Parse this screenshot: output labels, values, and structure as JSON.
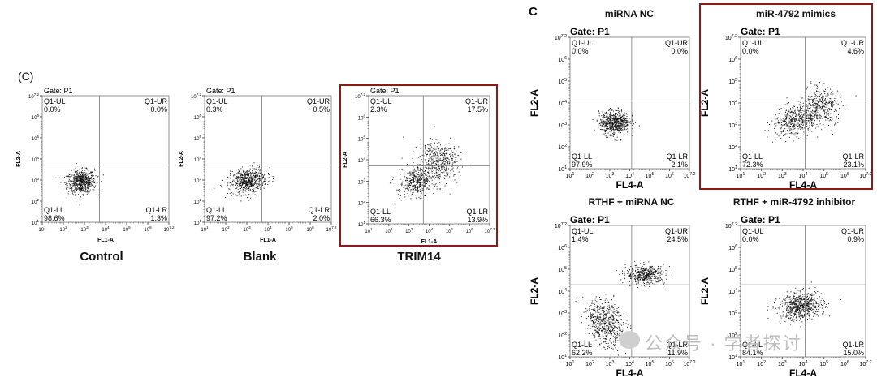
{
  "left_figure": {
    "panel_letter": "(C)",
    "captions": [
      "Control",
      "Blank",
      "TRIM14"
    ]
  },
  "right_figure": {
    "panel_letter": "C",
    "titles": [
      "miRNA NC",
      "miR-4792 mimics",
      "RTHF + miRNA NC",
      "RTHF + miR-4792 inhibitor"
    ]
  },
  "watermark": "公众号 · 学者探讨",
  "colors": {
    "frame": "#8b1a1a",
    "dots": "#111111",
    "watermark": "#bdbdbd"
  },
  "chart_data": [
    {
      "type": "scatter",
      "panel": "left",
      "caption": "Control",
      "gate": "Gate: P1",
      "xlabel": "FL1-A",
      "ylabel": "FL2-A",
      "x_ticks": [
        "10^1",
        "10^2",
        "10^3",
        "10^4",
        "10^5",
        "10^6",
        "10^7.2"
      ],
      "y_ticks": [
        "10^1",
        "10^2",
        "10^3",
        "10^4",
        "10^5",
        "10^6",
        "10^7.2"
      ],
      "xlim": [
        1,
        7.2
      ],
      "ylim": [
        1,
        7.2
      ],
      "gate_x": 3.8,
      "gate_y": 3.8,
      "quadrants": {
        "Q1-UL": "0.0%",
        "Q1-UR": "0.0%",
        "Q1-LL": "98.6%",
        "Q1-LR": "1.3%"
      },
      "boxed": false
    },
    {
      "type": "scatter",
      "panel": "left",
      "caption": "Blank",
      "gate": "Gate: P1",
      "xlabel": "FL1-A",
      "ylabel": "FL2-A",
      "x_ticks": [
        "10^1",
        "10^2",
        "10^3",
        "10^4",
        "10^5",
        "10^6",
        "10^7.2"
      ],
      "y_ticks": [
        "10^1",
        "10^2",
        "10^3",
        "10^4",
        "10^5",
        "10^6",
        "10^7.2"
      ],
      "xlim": [
        1,
        7.2
      ],
      "ylim": [
        1,
        7.2
      ],
      "gate_x": 3.8,
      "gate_y": 3.8,
      "quadrants": {
        "Q1-UL": "0.3%",
        "Q1-UR": "0.5%",
        "Q1-LL": "97.2%",
        "Q1-LR": "2.0%"
      },
      "boxed": false
    },
    {
      "type": "scatter",
      "panel": "left",
      "caption": "TRIM14",
      "gate": "Gate: P1",
      "xlabel": "FL1-A",
      "ylabel": "FL2-A",
      "x_ticks": [
        "10^1",
        "10^2",
        "10^3",
        "10^4",
        "10^5",
        "10^6",
        "10^7.2"
      ],
      "y_ticks": [
        "10^1",
        "10^2",
        "10^3",
        "10^4",
        "10^5",
        "10^6",
        "10^7.2"
      ],
      "xlim": [
        1,
        7.2
      ],
      "ylim": [
        1,
        7.2
      ],
      "gate_x": 3.8,
      "gate_y": 3.8,
      "quadrants": {
        "Q1-UL": "2.3%",
        "Q1-UR": "17.5%",
        "Q1-LL": "66.3%",
        "Q1-LR": "13.9%"
      },
      "boxed": true
    },
    {
      "type": "scatter",
      "panel": "right",
      "title": "miRNA NC",
      "gate": "Gate: P1",
      "xlabel": "FL4-A",
      "ylabel": "FL2-A",
      "x_ticks": [
        "10^1",
        "10^2",
        "10^3",
        "10^4",
        "10^5",
        "10^6",
        "10^7.2"
      ],
      "y_ticks": [
        "10^1",
        "10^2",
        "10^3",
        "10^4",
        "10^5",
        "10^6",
        "10^7.2"
      ],
      "xlim": [
        1,
        7.2
      ],
      "ylim": [
        1,
        7.2
      ],
      "gate_x": 4.2,
      "gate_y": 4.2,
      "quadrants": {
        "Q1-UL": "0.0%",
        "Q1-UR": "0.0%",
        "Q1-LL": "97.9%",
        "Q1-LR": "2.1%"
      },
      "boxed": false
    },
    {
      "type": "scatter",
      "panel": "right",
      "title": "miR-4792 mimics",
      "gate": "Gate: P1",
      "xlabel": "FL4-A",
      "ylabel": "FL2-A",
      "x_ticks": [
        "10^1",
        "10^2",
        "10^3",
        "10^4",
        "10^5",
        "10^6",
        "10^7.2"
      ],
      "y_ticks": [
        "10^1",
        "10^2",
        "10^3",
        "10^4",
        "10^5",
        "10^6",
        "10^7.2"
      ],
      "xlim": [
        1,
        7.2
      ],
      "ylim": [
        1,
        7.2
      ],
      "gate_x": 4.2,
      "gate_y": 4.2,
      "quadrants": {
        "Q1-UL": "0.0%",
        "Q1-UR": "4.6%",
        "Q1-LL": "72.3%",
        "Q1-LR": "23.1%"
      },
      "boxed": true
    },
    {
      "type": "scatter",
      "panel": "right",
      "title": "RTHF + miRNA NC",
      "gate": "Gate: P1",
      "xlabel": "FL4-A",
      "ylabel": "FL2-A",
      "x_ticks": [
        "10^1",
        "10^2",
        "10^3",
        "10^4",
        "10^5",
        "10^6",
        "10^7.2"
      ],
      "y_ticks": [
        "10^1",
        "10^2",
        "10^3",
        "10^4",
        "10^5",
        "10^6",
        "10^7.2"
      ],
      "xlim": [
        1,
        7.2
      ],
      "ylim": [
        1,
        7.2
      ],
      "gate_x": 4.2,
      "gate_y": 4.4,
      "quadrants": {
        "Q1-UL": "1.4%",
        "Q1-UR": "24.5%",
        "Q1-LL": "62.2%",
        "Q1-LR": "11.9%"
      },
      "boxed": false
    },
    {
      "type": "scatter",
      "panel": "right",
      "title": "RTHF + miR-4792 inhibitor",
      "gate": "Gate: P1",
      "xlabel": "FL4-A",
      "ylabel": "FL2-A",
      "x_ticks": [
        "10^1",
        "10^2",
        "10^3",
        "10^4",
        "10^5",
        "10^6",
        "10^7.2"
      ],
      "y_ticks": [
        "10^1",
        "10^2",
        "10^3",
        "10^4",
        "10^5",
        "10^6",
        "10^7.2"
      ],
      "xlim": [
        1,
        7.2
      ],
      "ylim": [
        1,
        7.2
      ],
      "gate_x": 4.2,
      "gate_y": 4.4,
      "quadrants": {
        "Q1-UL": "0.0%",
        "Q1-UR": "0.9%",
        "Q1-LL": "84.1%",
        "Q1-LR": "15.0%"
      },
      "boxed": false
    }
  ]
}
